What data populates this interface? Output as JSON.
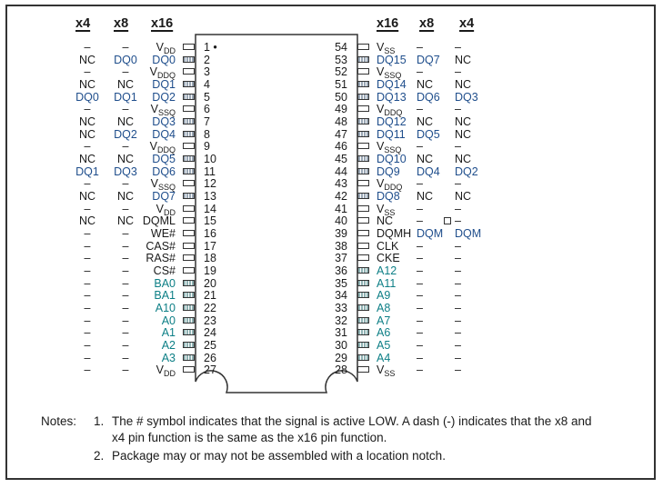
{
  "headers": {
    "left": [
      "x4",
      "x8",
      "x16"
    ],
    "right": [
      "x16",
      "x8",
      "x4"
    ]
  },
  "left_pins": [
    {
      "num": "1 •",
      "x4": "–",
      "x8": "–",
      "x16": "V",
      "sub": "DD",
      "type": "power"
    },
    {
      "num": "2",
      "x4": "NC",
      "x8": "DQ0",
      "x16": "DQ0",
      "type": "dq"
    },
    {
      "num": "3",
      "x4": "–",
      "x8": "–",
      "x16": "V",
      "sub": "DDQ",
      "type": "power"
    },
    {
      "num": "4",
      "x4": "NC",
      "x8": "NC",
      "x16": "DQ1",
      "type": "dq"
    },
    {
      "num": "5",
      "x4": "DQ0",
      "x8": "DQ1",
      "x16": "DQ2",
      "type": "dq"
    },
    {
      "num": "6",
      "x4": "–",
      "x8": "–",
      "x16": "V",
      "sub": "SSQ",
      "type": "power"
    },
    {
      "num": "7",
      "x4": "NC",
      "x8": "NC",
      "x16": "DQ3",
      "type": "dq"
    },
    {
      "num": "8",
      "x4": "NC",
      "x8": "DQ2",
      "x16": "DQ4",
      "type": "dq"
    },
    {
      "num": "9",
      "x4": "–",
      "x8": "–",
      "x16": "V",
      "sub": "DDQ",
      "type": "power"
    },
    {
      "num": "10",
      "x4": "NC",
      "x8": "NC",
      "x16": "DQ5",
      "type": "dq"
    },
    {
      "num": "11",
      "x4": "DQ1",
      "x8": "DQ3",
      "x16": "DQ6",
      "type": "dq"
    },
    {
      "num": "12",
      "x4": "–",
      "x8": "–",
      "x16": "V",
      "sub": "SSQ",
      "type": "power"
    },
    {
      "num": "13",
      "x4": "NC",
      "x8": "NC",
      "x16": "DQ7",
      "type": "dq"
    },
    {
      "num": "14",
      "x4": "–",
      "x8": "–",
      "x16": "V",
      "sub": "DD",
      "type": "power"
    },
    {
      "num": "15",
      "x4": "NC",
      "x8": "NC",
      "x16": "DQML",
      "type": "ctrl"
    },
    {
      "num": "16",
      "x4": "–",
      "x8": "–",
      "x16": "WE#",
      "type": "ctrl"
    },
    {
      "num": "17",
      "x4": "–",
      "x8": "–",
      "x16": "CAS#",
      "type": "ctrl"
    },
    {
      "num": "18",
      "x4": "–",
      "x8": "–",
      "x16": "RAS#",
      "type": "ctrl"
    },
    {
      "num": "19",
      "x4": "–",
      "x8": "–",
      "x16": "CS#",
      "type": "ctrl"
    },
    {
      "num": "20",
      "x4": "–",
      "x8": "–",
      "x16": "BA0",
      "type": "addr"
    },
    {
      "num": "21",
      "x4": "–",
      "x8": "–",
      "x16": "BA1",
      "type": "addr"
    },
    {
      "num": "22",
      "x4": "–",
      "x8": "–",
      "x16": "A10",
      "type": "addr"
    },
    {
      "num": "23",
      "x4": "–",
      "x8": "–",
      "x16": "A0",
      "type": "addr"
    },
    {
      "num": "24",
      "x4": "–",
      "x8": "–",
      "x16": "A1",
      "type": "addr"
    },
    {
      "num": "25",
      "x4": "–",
      "x8": "–",
      "x16": "A2",
      "type": "addr"
    },
    {
      "num": "26",
      "x4": "–",
      "x8": "–",
      "x16": "A3",
      "type": "addr"
    },
    {
      "num": "27",
      "x4": "–",
      "x8": "–",
      "x16": "V",
      "sub": "DD",
      "type": "power"
    }
  ],
  "right_pins": [
    {
      "num": "54",
      "x16": "V",
      "sub": "SS",
      "x8": "–",
      "x4": "–",
      "type": "power"
    },
    {
      "num": "53",
      "x16": "DQ15",
      "x8": "DQ7",
      "x4": "NC",
      "type": "dq"
    },
    {
      "num": "52",
      "x16": "V",
      "sub": "SSQ",
      "x8": "–",
      "x4": "–",
      "type": "power"
    },
    {
      "num": "51",
      "x16": "DQ14",
      "x8": "NC",
      "x4": "NC",
      "type": "dq"
    },
    {
      "num": "50",
      "x16": "DQ13",
      "x8": "DQ6",
      "x4": "DQ3",
      "type": "dq"
    },
    {
      "num": "49",
      "x16": "V",
      "sub": "DDQ",
      "x8": "–",
      "x4": "–",
      "type": "power"
    },
    {
      "num": "48",
      "x16": "DQ12",
      "x8": "NC",
      "x4": "NC",
      "type": "dq"
    },
    {
      "num": "47",
      "x16": "DQ11",
      "x8": "DQ5",
      "x4": "NC",
      "type": "dq"
    },
    {
      "num": "46",
      "x16": "V",
      "sub": "SSQ",
      "x8": "–",
      "x4": "–",
      "type": "power"
    },
    {
      "num": "45",
      "x16": "DQ10",
      "x8": "NC",
      "x4": "NC",
      "type": "dq"
    },
    {
      "num": "44",
      "x16": "DQ9",
      "x8": "DQ4",
      "x4": "DQ2",
      "type": "dq"
    },
    {
      "num": "43",
      "x16": "V",
      "sub": "DDQ",
      "x8": "–",
      "x4": "–",
      "type": "power"
    },
    {
      "num": "42",
      "x16": "DQ8",
      "x8": "NC",
      "x4": "NC",
      "type": "dq"
    },
    {
      "num": "41",
      "x16": "V",
      "sub": "SS",
      "x8": "–",
      "x4": "–",
      "type": "power"
    },
    {
      "num": "40",
      "x16": "NC",
      "x8": "–",
      "x4": "–",
      "type": "ctrl"
    },
    {
      "num": "39",
      "x16": "DQMH",
      "x8": "DQM",
      "x4": "DQM",
      "type": "ctrl"
    },
    {
      "num": "38",
      "x16": "CLK",
      "x8": "–",
      "x4": "–",
      "type": "ctrl"
    },
    {
      "num": "37",
      "x16": "CKE",
      "x8": "–",
      "x4": "–",
      "type": "ctrl"
    },
    {
      "num": "36",
      "x16": "A12",
      "x8": "–",
      "x4": "–",
      "type": "addr"
    },
    {
      "num": "35",
      "x16": "A11",
      "x8": "–",
      "x4": "–",
      "type": "addr"
    },
    {
      "num": "34",
      "x16": "A9",
      "x8": "–",
      "x4": "–",
      "type": "addr"
    },
    {
      "num": "33",
      "x16": "A8",
      "x8": "–",
      "x4": "–",
      "type": "addr"
    },
    {
      "num": "32",
      "x16": "A7",
      "x8": "–",
      "x4": "–",
      "type": "addr"
    },
    {
      "num": "31",
      "x16": "A6",
      "x8": "–",
      "x4": "–",
      "type": "addr"
    },
    {
      "num": "30",
      "x16": "A5",
      "x8": "–",
      "x4": "–",
      "type": "addr"
    },
    {
      "num": "29",
      "x16": "A4",
      "x8": "–",
      "x4": "–",
      "type": "addr"
    },
    {
      "num": "28",
      "x16": "V",
      "sub": "SS",
      "x8": "–",
      "x4": "–",
      "type": "power"
    }
  ],
  "notes": {
    "label": "Notes:",
    "items": [
      {
        "num": "1.",
        "lines": [
          "The # symbol indicates that the signal is active LOW. A dash (-) indicates that the x8 and",
          "x4 pin function is the same as the x16 pin function."
        ]
      },
      {
        "num": "2.",
        "lines": [
          "Package may or may not be assembled with a location notch."
        ]
      }
    ]
  },
  "colors": {
    "dq": "#1f4e8c",
    "addr": "#0d7f86",
    "text": "#1a1a1a"
  }
}
